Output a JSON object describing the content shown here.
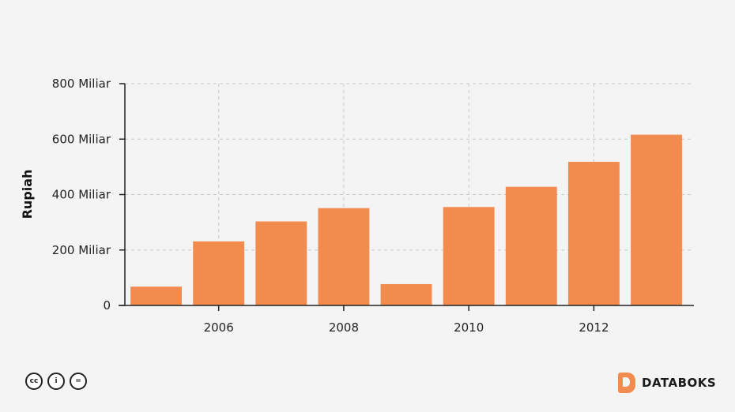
{
  "chart_data": {
    "type": "bar",
    "x": [
      2005,
      2006,
      2007,
      2008,
      2009,
      2010,
      2011,
      2012,
      2013
    ],
    "values": [
      68,
      231,
      303,
      351,
      77,
      355,
      428,
      518,
      616
    ],
    "value_unit": "Miliar",
    "xticks": [
      "2006",
      "2008",
      "2010",
      "2012"
    ],
    "xtick_values": [
      2006,
      2008,
      2010,
      2012
    ],
    "yticks": [
      "0",
      "200 Miliar",
      "400 Miliar",
      "600 Miliar",
      "800 Miliar"
    ],
    "ytick_values": [
      0,
      200,
      400,
      600,
      800
    ],
    "ylabel": "Rupiah",
    "xlabel": "",
    "title": "",
    "ylim": [
      0,
      800
    ],
    "grid": true,
    "bar_color": "#f28b4e"
  },
  "footer": {
    "license_icons": [
      "cc-icon",
      "by-icon",
      "nd-icon"
    ],
    "license_glyphs": [
      "cc",
      "i",
      "="
    ],
    "brand": "DATABOKS",
    "brand_color": "#f28b4e"
  }
}
